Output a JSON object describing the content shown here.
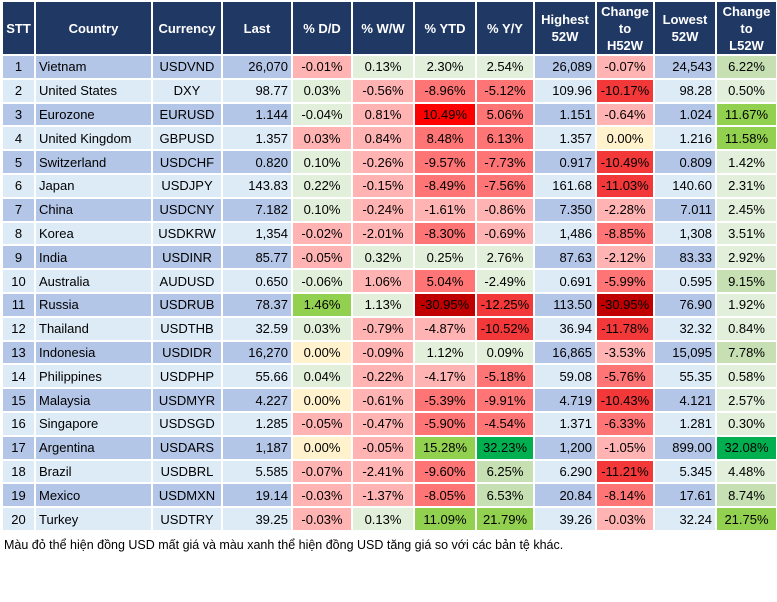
{
  "headers": [
    "STT",
    "Country",
    "Currency",
    "Last",
    "% D/D",
    "% W/W",
    "% YTD",
    "% Y/Y",
    "Highest\n52W",
    "Change\nto\nH52W",
    "Lowest\n52W",
    "Change\nto\nL52W"
  ],
  "colors": {
    "header_bg": "#203864",
    "band_odd": "#b4c6e7",
    "band_even": "#ddebf7",
    "r1": "#ffb3b3",
    "r2": "#ff7474",
    "r3": "#f23838",
    "r4": "#ff0000",
    "r5": "#c00000",
    "g1": "#e2efda",
    "g2": "#c6e0b4",
    "g3": "#92d050",
    "g4": "#00b050",
    "y": "#fff2cc"
  },
  "rows": [
    {
      "stt": "1",
      "country": "Vietnam",
      "currency": "USDVND",
      "last": "26,070",
      "dd": "-0.01%",
      "ww": "0.13%",
      "ytd": "2.30%",
      "yy": "2.54%",
      "high": "26,089",
      "chh": "-0.07%",
      "low": "24,543",
      "chl": "6.22%",
      "lv": [
        "r1",
        "g1",
        "g1",
        "g1",
        "r1",
        "g2"
      ]
    },
    {
      "stt": "2",
      "country": "United States",
      "currency": "DXY",
      "last": "98.77",
      "dd": "0.03%",
      "ww": "-0.56%",
      "ytd": "-8.96%",
      "yy": "-5.12%",
      "high": "109.96",
      "chh": "-10.17%",
      "low": "98.28",
      "chl": "0.50%",
      "lv": [
        "g1",
        "r1",
        "r2",
        "r2",
        "r3",
        "g1"
      ]
    },
    {
      "stt": "3",
      "country": "Eurozone",
      "currency": "EURUSD",
      "last": "1.144",
      "dd": "-0.04%",
      "ww": "0.81%",
      "ytd": "10.49%",
      "yy": "5.06%",
      "high": "1.151",
      "chh": "-0.64%",
      "low": "1.024",
      "chl": "11.67%",
      "lv": [
        "g1",
        "r1",
        "r4",
        "r2",
        "r1",
        "g3"
      ]
    },
    {
      "stt": "4",
      "country": "United Kingdom",
      "currency": "GBPUSD",
      "last": "1.357",
      "dd": "0.03%",
      "ww": "0.84%",
      "ytd": "8.48%",
      "yy": "6.13%",
      "high": "1.357",
      "chh": "0.00%",
      "low": "1.216",
      "chl": "11.58%",
      "lv": [
        "r1",
        "r1",
        "r2",
        "r2",
        "y",
        "g3"
      ]
    },
    {
      "stt": "5",
      "country": "Switzerland",
      "currency": "USDCHF",
      "last": "0.820",
      "dd": "0.10%",
      "ww": "-0.26%",
      "ytd": "-9.57%",
      "yy": "-7.73%",
      "high": "0.917",
      "chh": "-10.49%",
      "low": "0.809",
      "chl": "1.42%",
      "lv": [
        "g1",
        "r1",
        "r2",
        "r2",
        "r3",
        "g1"
      ]
    },
    {
      "stt": "6",
      "country": "Japan",
      "currency": "USDJPY",
      "last": "143.83",
      "dd": "0.22%",
      "ww": "-0.15%",
      "ytd": "-8.49%",
      "yy": "-7.56%",
      "high": "161.68",
      "chh": "-11.03%",
      "low": "140.60",
      "chl": "2.31%",
      "lv": [
        "g1",
        "r1",
        "r2",
        "r2",
        "r3",
        "g1"
      ]
    },
    {
      "stt": "7",
      "country": "China",
      "currency": "USDCNY",
      "last": "7.182",
      "dd": "0.10%",
      "ww": "-0.24%",
      "ytd": "-1.61%",
      "yy": "-0.86%",
      "high": "7.350",
      "chh": "-2.28%",
      "low": "7.011",
      "chl": "2.45%",
      "lv": [
        "g1",
        "r1",
        "r1",
        "r1",
        "r1",
        "g1"
      ]
    },
    {
      "stt": "8",
      "country": "Korea",
      "currency": "USDKRW",
      "last": "1,354",
      "dd": "-0.02%",
      "ww": "-2.01%",
      "ytd": "-8.30%",
      "yy": "-0.69%",
      "high": "1,486",
      "chh": "-8.85%",
      "low": "1,308",
      "chl": "3.51%",
      "lv": [
        "r1",
        "r1",
        "r2",
        "r1",
        "r2",
        "g1"
      ]
    },
    {
      "stt": "9",
      "country": "India",
      "currency": "USDINR",
      "last": "85.77",
      "dd": "-0.05%",
      "ww": "0.32%",
      "ytd": "0.25%",
      "yy": "2.76%",
      "high": "87.63",
      "chh": "-2.12%",
      "low": "83.33",
      "chl": "2.92%",
      "lv": [
        "r1",
        "g1",
        "g1",
        "g1",
        "r1",
        "g1"
      ]
    },
    {
      "stt": "10",
      "country": "Australia",
      "currency": "AUDUSD",
      "last": "0.650",
      "dd": "-0.06%",
      "ww": "1.06%",
      "ytd": "5.04%",
      "yy": "-2.49%",
      "high": "0.691",
      "chh": "-5.99%",
      "low": "0.595",
      "chl": "9.15%",
      "lv": [
        "g1",
        "r1",
        "r2",
        "g1",
        "r2",
        "g2"
      ]
    },
    {
      "stt": "11",
      "country": "Russia",
      "currency": "USDRUB",
      "last": "78.37",
      "dd": "1.46%",
      "ww": "1.13%",
      "ytd": "-30.95%",
      "yy": "-12.25%",
      "high": "113.50",
      "chh": "-30.95%",
      "low": "76.90",
      "chl": "1.92%",
      "lv": [
        "g3",
        "g1",
        "r5",
        "r3",
        "r5",
        "g1"
      ]
    },
    {
      "stt": "12",
      "country": "Thailand",
      "currency": "USDTHB",
      "last": "32.59",
      "dd": "0.03%",
      "ww": "-0.79%",
      "ytd": "-4.87%",
      "yy": "-10.52%",
      "high": "36.94",
      "chh": "-11.78%",
      "low": "32.32",
      "chl": "0.84%",
      "lv": [
        "g1",
        "r1",
        "r1",
        "r3",
        "r3",
        "g1"
      ]
    },
    {
      "stt": "13",
      "country": "Indonesia",
      "currency": "USDIDR",
      "last": "16,270",
      "dd": "0.00%",
      "ww": "-0.09%",
      "ytd": "1.12%",
      "yy": "0.09%",
      "high": "16,865",
      "chh": "-3.53%",
      "low": "15,095",
      "chl": "7.78%",
      "lv": [
        "y",
        "r1",
        "g1",
        "g1",
        "r1",
        "g2"
      ]
    },
    {
      "stt": "14",
      "country": "Philippines",
      "currency": "USDPHP",
      "last": "55.66",
      "dd": "0.04%",
      "ww": "-0.22%",
      "ytd": "-4.17%",
      "yy": "-5.18%",
      "high": "59.08",
      "chh": "-5.76%",
      "low": "55.35",
      "chl": "0.58%",
      "lv": [
        "g1",
        "r1",
        "r1",
        "r2",
        "r2",
        "g1"
      ]
    },
    {
      "stt": "15",
      "country": "Malaysia",
      "currency": "USDMYR",
      "last": "4.227",
      "dd": "0.00%",
      "ww": "-0.61%",
      "ytd": "-5.39%",
      "yy": "-9.91%",
      "high": "4.719",
      "chh": "-10.43%",
      "low": "4.121",
      "chl": "2.57%",
      "lv": [
        "y",
        "r1",
        "r2",
        "r2",
        "r3",
        "g1"
      ]
    },
    {
      "stt": "16",
      "country": "Singapore",
      "currency": "USDSGD",
      "last": "1.285",
      "dd": "-0.05%",
      "ww": "-0.47%",
      "ytd": "-5.90%",
      "yy": "-4.54%",
      "high": "1.371",
      "chh": "-6.33%",
      "low": "1.281",
      "chl": "0.30%",
      "lv": [
        "r1",
        "r1",
        "r2",
        "r2",
        "r2",
        "g1"
      ]
    },
    {
      "stt": "17",
      "country": "Argentina",
      "currency": "USDARS",
      "last": "1,187",
      "dd": "0.00%",
      "ww": "-0.05%",
      "ytd": "15.28%",
      "yy": "32.23%",
      "high": "1,200",
      "chh": "-1.05%",
      "low": "899.00",
      "chl": "32.08%",
      "lv": [
        "y",
        "r1",
        "g3",
        "g4",
        "r1",
        "g4"
      ]
    },
    {
      "stt": "18",
      "country": "Brazil",
      "currency": "USDBRL",
      "last": "5.585",
      "dd": "-0.07%",
      "ww": "-2.41%",
      "ytd": "-9.60%",
      "yy": "6.25%",
      "high": "6.290",
      "chh": "-11.21%",
      "low": "5.345",
      "chl": "4.48%",
      "lv": [
        "r1",
        "r1",
        "r2",
        "g2",
        "r3",
        "g1"
      ]
    },
    {
      "stt": "19",
      "country": "Mexico",
      "currency": "USDMXN",
      "last": "19.14",
      "dd": "-0.03%",
      "ww": "-1.37%",
      "ytd": "-8.05%",
      "yy": "6.53%",
      "high": "20.84",
      "chh": "-8.14%",
      "low": "17.61",
      "chl": "8.74%",
      "lv": [
        "r1",
        "r1",
        "r2",
        "g2",
        "r2",
        "g2"
      ]
    },
    {
      "stt": "20",
      "country": "Turkey",
      "currency": "USDTRY",
      "last": "39.25",
      "dd": "-0.03%",
      "ww": "0.13%",
      "ytd": "11.09%",
      "yy": "21.79%",
      "high": "39.26",
      "chh": "-0.03%",
      "low": "32.24",
      "chl": "21.75%",
      "lv": [
        "r1",
        "g1",
        "g3",
        "g3",
        "r1",
        "g3"
      ]
    }
  ],
  "footnote": "Màu đỏ thể hiện đồng USD mất giá và màu xanh thể hiện đồng USD tăng giá so với các bản tệ khác."
}
